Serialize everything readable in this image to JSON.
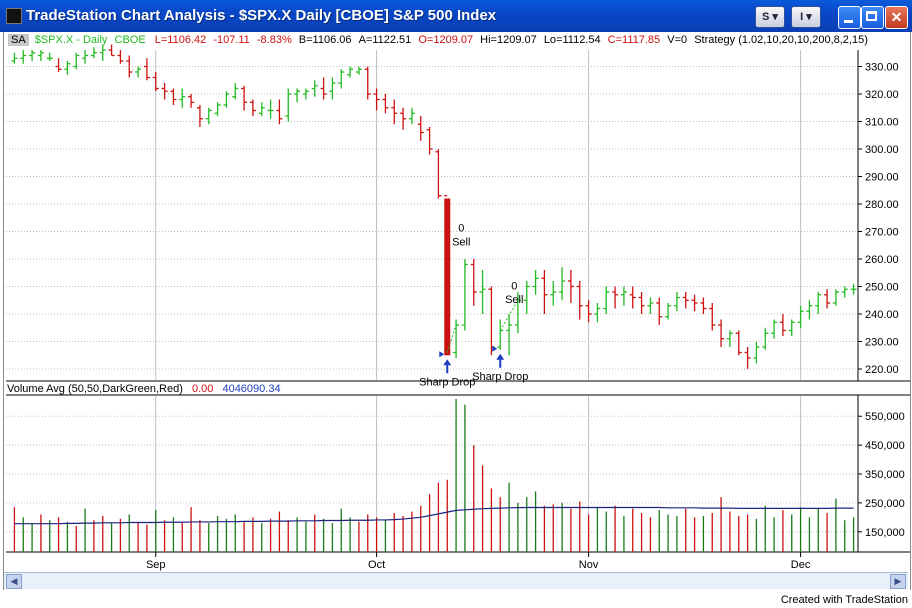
{
  "window": {
    "title": "TradeStation Chart Analysis - $SPX.X  Daily  [CBOE] S&P 500 Index",
    "btn_s": "S",
    "btn_i": "I",
    "footer": "Created with TradeStation"
  },
  "legend": {
    "sa": "SA",
    "symbol": "$SPX.X - Daily",
    "exchange": "CBOE",
    "last": "L=1106.42",
    "change": "-107.11",
    "pct": "-8.83%",
    "bid": "B=1106.06",
    "ask": "A=1122.51",
    "open": "O=1209.07",
    "high": "Hi=1209.07",
    "low": "Lo=1112.54",
    "close": "C=1117.85",
    "vol": "V=0",
    "strategy": "Strategy (1.02,10,20,10,200,8,2,15)"
  },
  "volume_legend": {
    "name": "Volume Avg (50,50,DarkGreen,Red)",
    "v1": "0.00",
    "v2": "4046090.34"
  },
  "colors": {
    "up": "#22bb22",
    "down": "#cc1111",
    "avg": "#1a237e",
    "signal": "#1f3fbf",
    "grid": "#c0c0c0"
  },
  "chart_data": [
    {
      "type": "ohlc",
      "y_ticks": [
        330,
        320,
        310,
        300,
        290,
        280,
        270,
        260,
        250,
        240,
        230,
        220
      ],
      "y_tick_labels": [
        "330.00",
        "320.00",
        "310.00",
        "300.00",
        "290.00",
        "280.00",
        "270.00",
        "260.00",
        "250.00",
        "240.00",
        "230.00",
        "220.00"
      ],
      "ylim": [
        216,
        336
      ],
      "x_labels": [
        {
          "label": "Sep",
          "index": 16
        },
        {
          "label": "Oct",
          "index": 41
        },
        {
          "label": "Nov",
          "index": 65
        },
        {
          "label": "Dec",
          "index": 89
        }
      ],
      "bars": [
        [
          332,
          335,
          331,
          333
        ],
        [
          333,
          336,
          331,
          334
        ],
        [
          334,
          336,
          332,
          335
        ],
        [
          334,
          336,
          332,
          335
        ],
        [
          333,
          335,
          332,
          333
        ],
        [
          330,
          333,
          328,
          329
        ],
        [
          329,
          332,
          327,
          331
        ],
        [
          330,
          335,
          329,
          334
        ],
        [
          333,
          336,
          331,
          334
        ],
        [
          334,
          337,
          333,
          335
        ],
        [
          335,
          338,
          332,
          336
        ],
        [
          336,
          338,
          334,
          334
        ],
        [
          334,
          336,
          331,
          332
        ],
        [
          332,
          334,
          326,
          328
        ],
        [
          328,
          330,
          326,
          329
        ],
        [
          330,
          333,
          325,
          326
        ],
        [
          326,
          328,
          321,
          322
        ],
        [
          322,
          324,
          318,
          321
        ],
        [
          321,
          322,
          316,
          318
        ],
        [
          318,
          322,
          315,
          319
        ],
        [
          319,
          320,
          315,
          317
        ],
        [
          315,
          316,
          308,
          311
        ],
        [
          311,
          315,
          309,
          314
        ],
        [
          313,
          317,
          312,
          316
        ],
        [
          316,
          321,
          315,
          320
        ],
        [
          319,
          324,
          318,
          322
        ],
        [
          322,
          323,
          314,
          317
        ],
        [
          317,
          318,
          312,
          314
        ],
        [
          313,
          317,
          312,
          315
        ],
        [
          314,
          318,
          311,
          314
        ],
        [
          314,
          318,
          309,
          311
        ],
        [
          312,
          322,
          310,
          320
        ],
        [
          320,
          322,
          317,
          321
        ],
        [
          320,
          322,
          318,
          321
        ],
        [
          322,
          325,
          319,
          323
        ],
        [
          322,
          326,
          318,
          320
        ],
        [
          321,
          326,
          318,
          324
        ],
        [
          324,
          329,
          322,
          328
        ],
        [
          327,
          330,
          326,
          329
        ],
        [
          328,
          330,
          327,
          329
        ],
        [
          329,
          330,
          318,
          320
        ],
        [
          320,
          322,
          314,
          318
        ],
        [
          318,
          320,
          313,
          315
        ],
        [
          315,
          318,
          309,
          313
        ],
        [
          313,
          315,
          307,
          311
        ],
        [
          311,
          315,
          309,
          313
        ],
        [
          309,
          312,
          303,
          306
        ],
        [
          307,
          308,
          298,
          300
        ],
        [
          299,
          300,
          282,
          283
        ],
        [
          283,
          282,
          225,
          226
        ],
        [
          226,
          238,
          224,
          236
        ],
        [
          236,
          260,
          234,
          258
        ],
        [
          258,
          260,
          243,
          248
        ],
        [
          248,
          256,
          240,
          249
        ],
        [
          249,
          250,
          225,
          228
        ],
        [
          228,
          238,
          227,
          234
        ],
        [
          234,
          240,
          225,
          236
        ],
        [
          236,
          248,
          233,
          245
        ],
        [
          245,
          252,
          240,
          250
        ],
        [
          250,
          256,
          247,
          253
        ],
        [
          253,
          256,
          240,
          247
        ],
        [
          247,
          252,
          243,
          248
        ],
        [
          248,
          257,
          245,
          252
        ],
        [
          252,
          256,
          244,
          250
        ],
        [
          250,
          252,
          238,
          243
        ],
        [
          243,
          245,
          237,
          240
        ],
        [
          240,
          244,
          237,
          242
        ],
        [
          242,
          250,
          240,
          248
        ],
        [
          248,
          250,
          242,
          247
        ],
        [
          247,
          250,
          243,
          248
        ],
        [
          247,
          250,
          242,
          246
        ],
        [
          246,
          248,
          240,
          243
        ],
        [
          243,
          246,
          240,
          244
        ],
        [
          244,
          246,
          236,
          239
        ],
        [
          239,
          244,
          238,
          243
        ],
        [
          243,
          248,
          241,
          246
        ],
        [
          246,
          248,
          242,
          245
        ],
        [
          245,
          247,
          241,
          244
        ],
        [
          244,
          246,
          240,
          242
        ],
        [
          242,
          244,
          234,
          236
        ],
        [
          236,
          238,
          228,
          231
        ],
        [
          231,
          234,
          228,
          233
        ],
        [
          233,
          234,
          225,
          226
        ],
        [
          226,
          228,
          220,
          224
        ],
        [
          224,
          230,
          222,
          228
        ],
        [
          228,
          235,
          227,
          233
        ],
        [
          233,
          238,
          231,
          237
        ],
        [
          237,
          240,
          232,
          234
        ],
        [
          234,
          238,
          232,
          237
        ],
        [
          237,
          243,
          235,
          241
        ],
        [
          241,
          245,
          238,
          243
        ],
        [
          243,
          248,
          240,
          247
        ],
        [
          247,
          249,
          242,
          244
        ],
        [
          244,
          249,
          243,
          248
        ],
        [
          248,
          250,
          246,
          249
        ],
        [
          249,
          251,
          247,
          249
        ]
      ],
      "annotations": [
        {
          "label": "0",
          "index": 49,
          "price": 270
        },
        {
          "label": "Sell",
          "index": 49,
          "price": 265
        },
        {
          "label": "Sharp Drop",
          "index": 49,
          "price": 214
        },
        {
          "label": "0",
          "index": 55,
          "price": 249
        },
        {
          "label": "Sell",
          "index": 55,
          "price": 244
        },
        {
          "label": "Sharp Drop",
          "index": 55,
          "price": 216
        }
      ]
    },
    {
      "type": "bar",
      "y_ticks": [
        550000,
        450000,
        350000,
        250000,
        150000
      ],
      "y_tick_labels": [
        "550,000",
        "450,000",
        "350,000",
        "250,000",
        "150,000"
      ],
      "ylim": [
        80000,
        620000
      ],
      "values": [
        235000,
        200000,
        180000,
        210000,
        190000,
        200000,
        185000,
        170000,
        230000,
        190000,
        205000,
        180000,
        195000,
        210000,
        185000,
        175000,
        225000,
        190000,
        200000,
        180000,
        235000,
        190000,
        180000,
        205000,
        195000,
        210000,
        185000,
        200000,
        180000,
        195000,
        220000,
        190000,
        200000,
        185000,
        210000,
        195000,
        180000,
        230000,
        200000,
        185000,
        210000,
        200000,
        190000,
        215000,
        205000,
        220000,
        240000,
        280000,
        320000,
        330000,
        610000,
        590000,
        450000,
        380000,
        300000,
        270000,
        320000,
        250000,
        270000,
        290000,
        240000,
        245000,
        250000,
        230000,
        255000,
        210000,
        235000,
        220000,
        240000,
        205000,
        230000,
        215000,
        200000,
        225000,
        210000,
        205000,
        230000,
        200000,
        205000,
        215000,
        270000,
        220000,
        205000,
        210000,
        195000,
        240000,
        200000,
        225000,
        210000,
        235000,
        200000,
        230000,
        215000,
        265000,
        190000,
        200000
      ],
      "avg": [
        178000,
        178000,
        178000,
        178000,
        178000,
        178000,
        179000,
        179000,
        180000,
        180000,
        181000,
        181000,
        181000,
        182000,
        182000,
        182000,
        182000,
        183000,
        183000,
        183000,
        184000,
        184000,
        184000,
        185000,
        185000,
        185000,
        186000,
        186000,
        186000,
        187000,
        187000,
        187000,
        188000,
        188000,
        188000,
        189000,
        189000,
        189000,
        190000,
        190000,
        190000,
        191000,
        191000,
        192000,
        194000,
        197000,
        200000,
        206000,
        212000,
        218000,
        224000,
        226000,
        228000,
        230000,
        231000,
        232000,
        233000,
        233500,
        234000,
        234000,
        234000,
        234000,
        234000,
        234000,
        234000,
        234000,
        234000,
        234000,
        234000,
        234000,
        234000,
        234000,
        234000,
        234000,
        233000,
        233000,
        233000,
        233000,
        232000,
        232000,
        232000,
        232000,
        231000,
        231000,
        231000,
        231000,
        231000,
        231000,
        231000,
        231000,
        231000,
        231000,
        231000,
        232000,
        232000,
        232000
      ],
      "up_index": [
        1,
        2,
        4,
        6,
        8,
        11,
        13,
        16,
        18,
        22,
        23,
        24,
        25,
        28,
        32,
        33,
        35,
        36,
        37,
        38,
        42,
        50,
        51,
        56,
        57,
        58,
        59,
        62,
        66,
        67,
        69,
        73,
        74,
        75,
        78,
        84,
        85,
        86,
        88,
        89,
        90,
        91,
        93,
        94,
        95
      ]
    }
  ]
}
